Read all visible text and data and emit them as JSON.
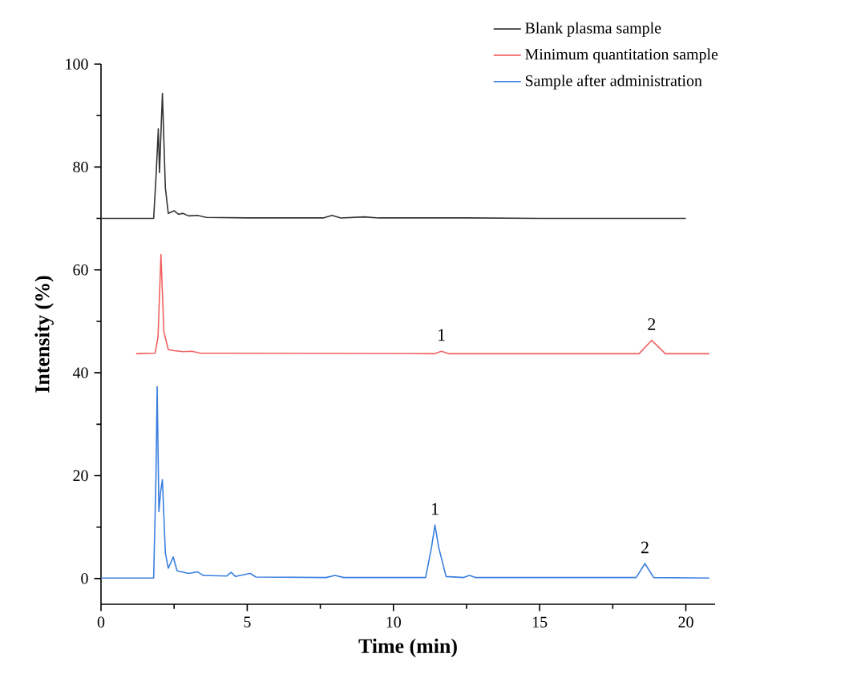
{
  "chart_data": {
    "type": "line",
    "xlabel": "Time (min)",
    "ylabel": "Intensity (%)",
    "xlim": [
      0,
      21
    ],
    "ylim": [
      -5,
      100
    ],
    "xticks": [
      0,
      5,
      10,
      15,
      20
    ],
    "yticks": [
      0,
      20,
      40,
      60,
      80,
      100
    ],
    "legend": "top right",
    "series": [
      {
        "name": "Blank plasma sample",
        "color": "#333333",
        "x": [
          0,
          1.8,
          1.88,
          1.96,
          2.0,
          2.1,
          2.2,
          2.3,
          2.5,
          2.65,
          2.8,
          3.0,
          3.3,
          3.6,
          5,
          7.6,
          7.9,
          8.2,
          9,
          9.5,
          12.5,
          15,
          20
        ],
        "values": [
          70,
          70,
          78,
          87.4,
          78.9,
          94.3,
          76,
          71,
          71.5,
          70.8,
          71,
          70.5,
          70.6,
          70.2,
          70.1,
          70.1,
          70.6,
          70.1,
          70.3,
          70.1,
          70.1,
          70,
          70
        ]
      },
      {
        "name": "Minimum quantitation sample",
        "color": "#f06060",
        "x": [
          1.2,
          1.85,
          1.95,
          2.05,
          2.15,
          2.3,
          2.5,
          2.8,
          3.1,
          3.4,
          11.4,
          11.64,
          11.9,
          18.4,
          18.83,
          19.3,
          20.8
        ],
        "values": [
          43.7,
          43.8,
          47,
          63,
          48,
          44.5,
          44.3,
          44.1,
          44.2,
          43.8,
          43.7,
          44.2,
          43.7,
          43.7,
          46.3,
          43.7,
          43.7
        ]
      },
      {
        "name": "Sample after administration",
        "color": "#3a7ee0",
        "x": [
          0,
          1.8,
          1.88,
          1.92,
          1.98,
          2.04,
          2.1,
          2.2,
          2.3,
          2.47,
          2.6,
          3.0,
          3.3,
          3.5,
          4.3,
          4.45,
          4.6,
          5.1,
          5.3,
          7.7,
          8.0,
          8.3,
          11.1,
          11.3,
          11.42,
          11.55,
          11.8,
          12.4,
          12.6,
          12.8,
          18.3,
          18.6,
          18.9,
          20.8
        ],
        "values": [
          0.1,
          0.1,
          20,
          37.3,
          13,
          17,
          19.2,
          5,
          2,
          4.2,
          1.5,
          1,
          1.3,
          0.6,
          0.5,
          1.2,
          0.4,
          1.0,
          0.3,
          0.2,
          0.6,
          0.2,
          0.2,
          6,
          10.4,
          6,
          0.4,
          0.2,
          0.6,
          0.2,
          0.2,
          2.9,
          0.2,
          0.1
        ]
      }
    ],
    "annotations": [
      {
        "text": "1",
        "x": 11.64,
        "y": 44.2
      },
      {
        "text": "2",
        "x": 18.83,
        "y": 46.3
      },
      {
        "text": "1",
        "x": 11.42,
        "y": 10.4
      },
      {
        "text": "2",
        "x": 18.6,
        "y": 2.9
      }
    ]
  }
}
